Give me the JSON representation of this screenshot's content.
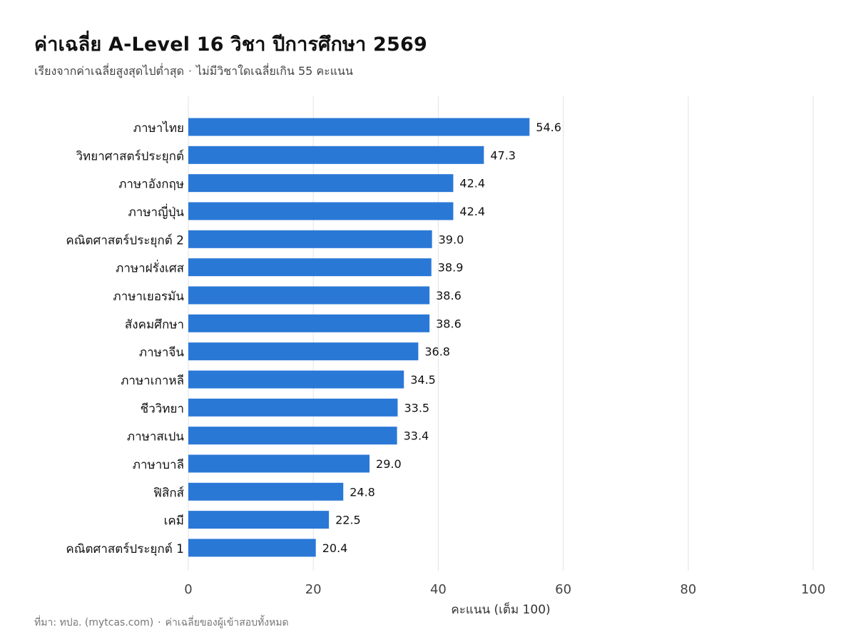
{
  "header": {
    "title": "ค่าเฉลี่ย A-Level 16 วิชา ปีการศึกษา 2569",
    "subtitle_left": "เรียงจากค่าเฉลี่ยสูงสุดไปต่ำสุด",
    "subtitle_sep": "·",
    "subtitle_right": "ไม่มีวิชาใดเฉลี่ยเกิน 55 คะแนน"
  },
  "footer": {
    "source": "ที่มา: ทปอ. (mytcas.com)",
    "sep": "·",
    "note": "ค่าเฉลี่ยของผู้เข้าสอบทั้งหมด"
  },
  "colors": {
    "bar": "#2a78d6",
    "grid": "#e3e3e3"
  },
  "chart_data": {
    "type": "bar",
    "orientation": "horizontal",
    "title": "ค่าเฉลี่ย A-Level 16 วิชา ปีการศึกษา 2569",
    "xlabel": "คะแนน (เต็ม 100)",
    "ylabel": "",
    "xlim": [
      0,
      100
    ],
    "xticks": [
      0,
      20,
      40,
      60,
      80,
      100
    ],
    "grid": "vertical",
    "categories": [
      "ภาษาไทย",
      "วิทยาศาสตร์ประยุกต์",
      "ภาษาอังกฤษ",
      "ภาษาญี่ปุ่น",
      "คณิตศาสตร์ประยุกต์ 2",
      "ภาษาฝรั่งเศส",
      "ภาษาเยอรมัน",
      "สังคมศึกษา",
      "ภาษาจีน",
      "ภาษาเกาหลี",
      "ชีววิทยา",
      "ภาษาสเปน",
      "ภาษาบาลี",
      "ฟิสิกส์",
      "เคมี",
      "คณิตศาสตร์ประยุกต์ 1"
    ],
    "values": [
      54.6,
      47.3,
      42.4,
      42.4,
      39.0,
      38.9,
      38.6,
      38.6,
      36.8,
      34.5,
      33.5,
      33.4,
      29.0,
      24.8,
      22.5,
      20.4
    ],
    "value_labels": [
      "54.6",
      "47.3",
      "42.4",
      "42.4",
      "39.0",
      "38.9",
      "38.6",
      "38.6",
      "36.8",
      "34.5",
      "33.5",
      "33.4",
      "29.0",
      "24.8",
      "22.5",
      "20.4"
    ]
  }
}
